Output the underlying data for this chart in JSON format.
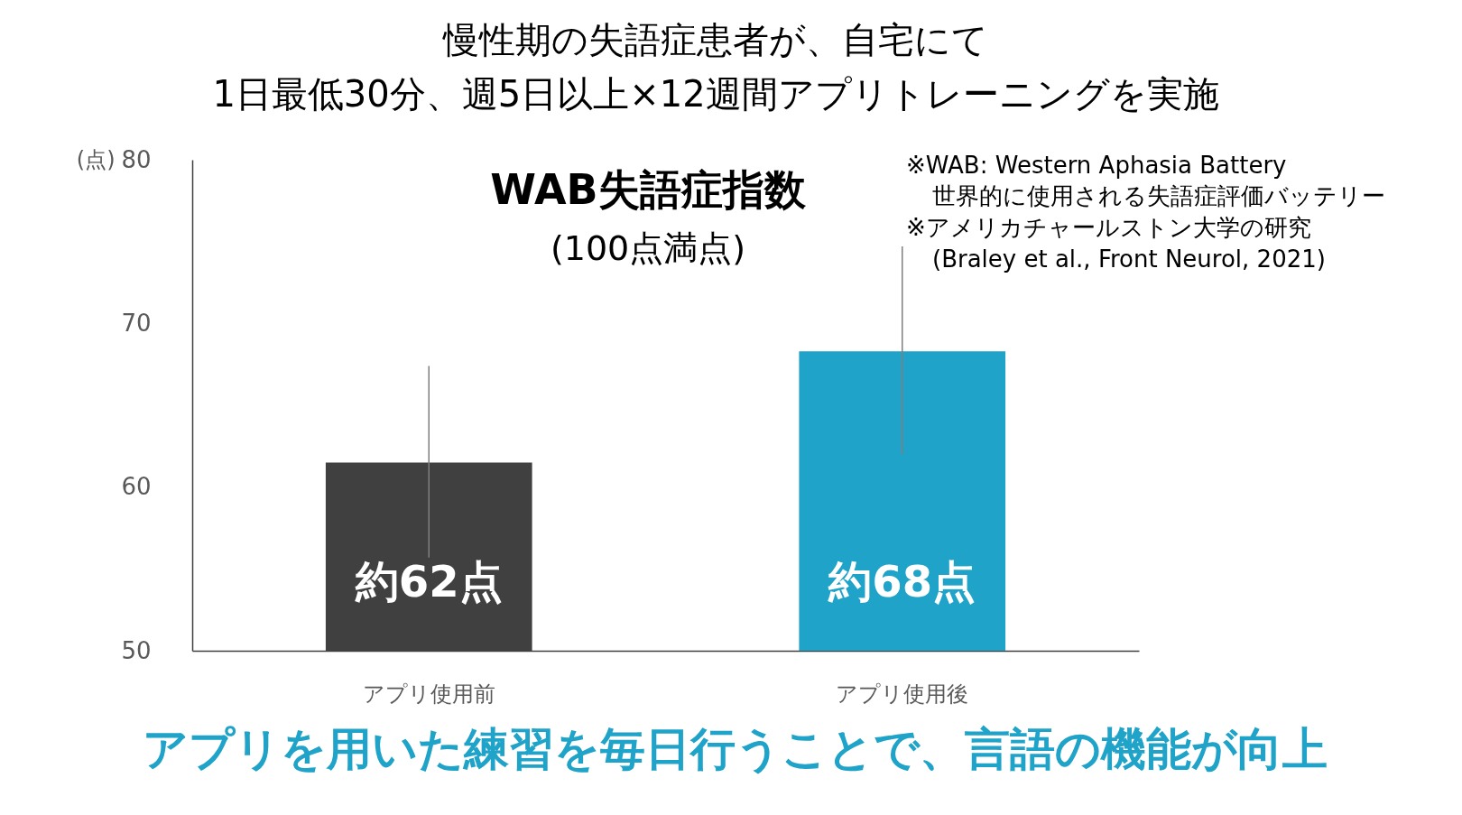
{
  "chart_data": {
    "type": "bar",
    "title": "慢性期の失語症患者が、自宅にて\n1日最低30分、週5日以上×12週間アプリトレーニングを実施",
    "subtitle": "WAB失語症指数\n(100点満点)",
    "ylabel": "(点)",
    "categories": [
      "アプリ使用前",
      "アプリ使用後"
    ],
    "values": [
      61.5,
      68.3
    ],
    "colors": [
      "#404040",
      "#1fa3c9"
    ],
    "errors": [
      [
        55.7,
        67.4
      ],
      [
        62.0,
        74.7
      ]
    ],
    "value_labels": [
      "約62点",
      "約68点"
    ],
    "ylim": [
      50,
      80
    ],
    "yticks": [
      50,
      60,
      70,
      80
    ],
    "grid": false,
    "annotations": [
      "※WAB: Western Aphasia Battery",
      "世界的に使用される失語症評価バッテリー",
      "※アメリカチャールストン大学の研究",
      "(Braley et al., Front Neurol, 2021)",
      "アプリを用いた練習を毎日行うことで、言語の機能が向上"
    ]
  }
}
